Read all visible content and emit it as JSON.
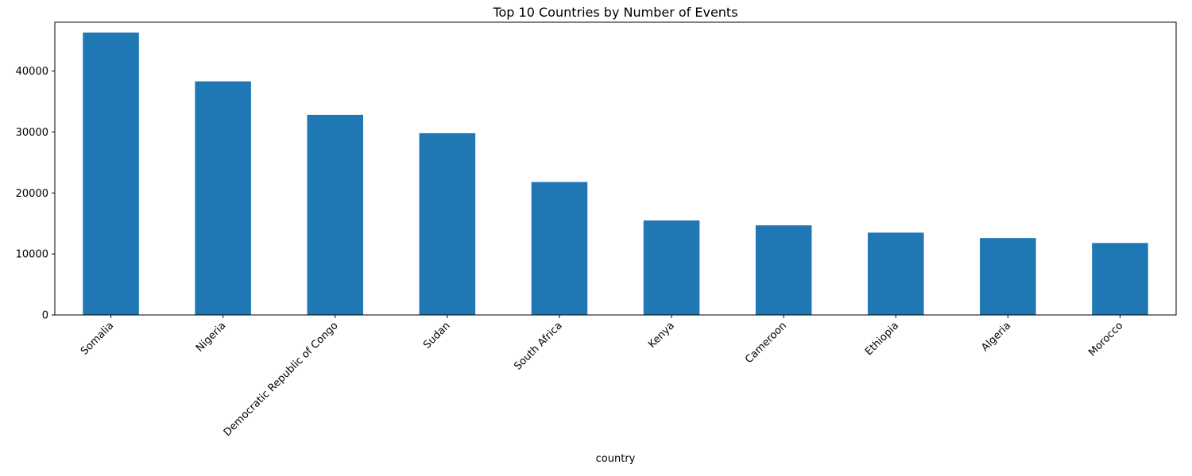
{
  "chart_data": {
    "type": "bar",
    "title": "Top 10 Countries by Number of Events",
    "xlabel": "country",
    "ylabel": "",
    "categories": [
      "Somalia",
      "Nigeria",
      "Democratic Republic of Congo",
      "Sudan",
      "South Africa",
      "Kenya",
      "Cameroon",
      "Ethiopia",
      "Algeria",
      "Morocco"
    ],
    "values": [
      46300,
      38300,
      32800,
      29800,
      21800,
      15500,
      14700,
      13500,
      12600,
      11800
    ],
    "ylim": [
      0,
      48000
    ],
    "yticks": [
      0,
      10000,
      20000,
      30000,
      40000
    ],
    "bar_color": "#1f77b4",
    "grid": false,
    "legend": "none"
  }
}
